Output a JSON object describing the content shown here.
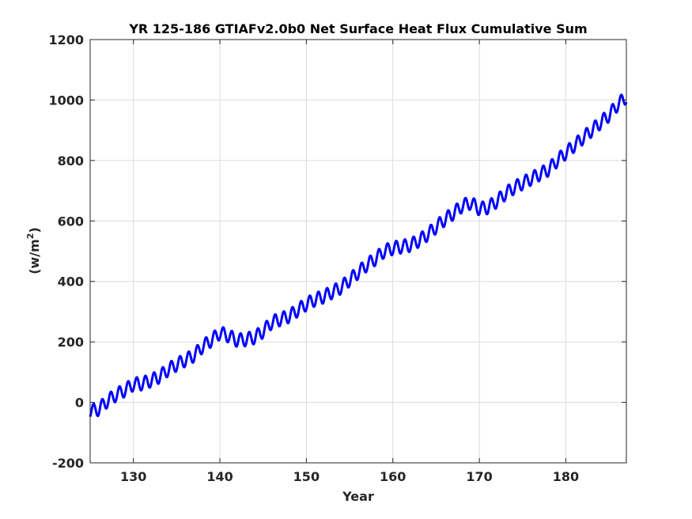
{
  "chart_data": {
    "type": "line",
    "title": "YR 125-186 GTIAFv2.0b0 Net Surface Heat Flux  Cumulative Sum",
    "xlabel": "Year",
    "ylabel_base": "(w/m",
    "ylabel_sup": "2",
    "ylabel_close": ")",
    "xlim": [
      125,
      187
    ],
    "ylim": [
      -200,
      1200
    ],
    "xticks": [
      130,
      140,
      150,
      160,
      170,
      180
    ],
    "yticks": [
      -200,
      0,
      200,
      400,
      600,
      800,
      1000,
      1200
    ],
    "xtick_labels": [
      "130",
      "140",
      "150",
      "160",
      "170",
      "180"
    ],
    "ytick_labels": [
      "-200",
      "0",
      "200",
      "400",
      "600",
      "800",
      "1000",
      "1200"
    ],
    "grid": true,
    "legend": "none",
    "line_color": "#0000ff",
    "series": [
      {
        "seasonal_amplitude": 22,
        "cycles_per_year": 1,
        "yearly_midline": {
          "x": [
            125,
            126,
            127,
            128,
            129,
            130,
            131,
            132,
            133,
            134,
            135,
            136,
            137,
            138,
            139,
            140,
            141,
            142,
            143,
            144,
            145,
            146,
            147,
            148,
            149,
            150,
            151,
            152,
            153,
            154,
            155,
            156,
            157,
            158,
            159,
            160,
            161,
            162,
            163,
            164,
            165,
            166,
            167,
            168,
            169,
            170,
            171,
            172,
            173,
            174,
            175,
            176,
            177,
            178,
            179,
            180,
            181,
            182,
            183,
            184,
            185,
            186,
            187
          ],
          "y": [
            -30,
            -22,
            5,
            25,
            40,
            60,
            62,
            72,
            85,
            108,
            125,
            140,
            155,
            185,
            205,
            230,
            220,
            205,
            208,
            215,
            235,
            265,
            275,
            285,
            305,
            325,
            340,
            350,
            365,
            380,
            405,
            430,
            455,
            475,
            500,
            510,
            515,
            520,
            535,
            555,
            580,
            605,
            625,
            650,
            660,
            640,
            645,
            665,
            690,
            710,
            725,
            740,
            755,
            770,
            800,
            825,
            850,
            875,
            900,
            925,
            950,
            985,
            1010
          ]
        }
      }
    ]
  }
}
